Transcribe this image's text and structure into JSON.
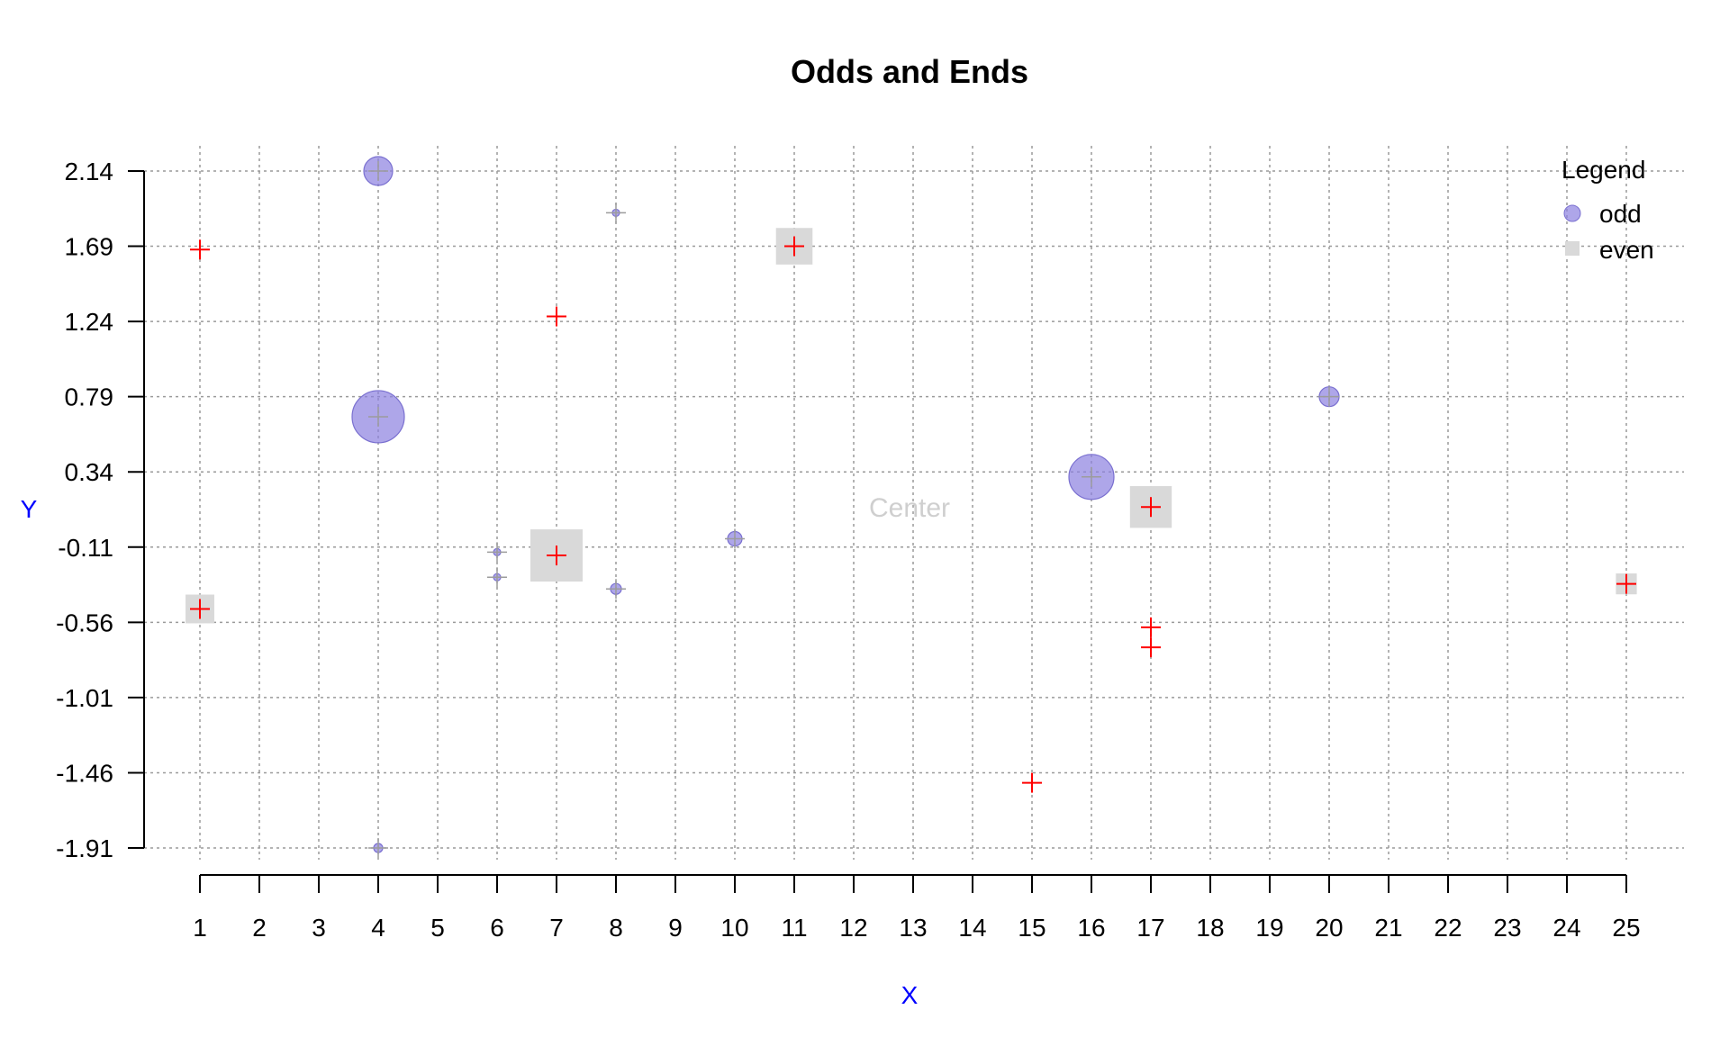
{
  "chart_data": {
    "type": "scatter",
    "title": "Odds and Ends",
    "xlabel": "X",
    "ylabel": "Y",
    "annotation": "Center",
    "xlim": [
      1,
      25
    ],
    "ylim": [
      -1.91,
      2.14
    ],
    "x_ticks": [
      "1",
      "2",
      "3",
      "4",
      "5",
      "6",
      "7",
      "8",
      "9",
      "10",
      "11",
      "12",
      "13",
      "14",
      "15",
      "16",
      "17",
      "18",
      "19",
      "20",
      "21",
      "22",
      "23",
      "24",
      "25"
    ],
    "y_ticks": [
      "2.14",
      "1.69",
      "1.24",
      "0.79",
      "0.34",
      "-0.11",
      "-0.56",
      "-1.01",
      "-1.46",
      "-1.91"
    ],
    "grid": true,
    "legend": {
      "title": "Legend",
      "position": "top-right",
      "entries": [
        "odd",
        "even"
      ]
    },
    "colors": {
      "odd": "#8c80e0",
      "even": "#d9d9d9",
      "cross": "#ff0000",
      "axis_label": "#0000ff",
      "grid": "#9a9a9a"
    },
    "series": [
      {
        "name": "odd",
        "marker": "circle",
        "points": [
          {
            "x": 4,
            "y": 2.14,
            "size": 1.6
          },
          {
            "x": 4,
            "y": 0.67,
            "size": 2.9
          },
          {
            "x": 4,
            "y": -1.91,
            "size": 0.5
          },
          {
            "x": 6,
            "y": -0.14,
            "size": 0.2
          },
          {
            "x": 6,
            "y": -0.29,
            "size": 0.3
          },
          {
            "x": 8,
            "y": 1.89,
            "size": 0.3
          },
          {
            "x": 8,
            "y": -0.36,
            "size": 0.6
          },
          {
            "x": 10,
            "y": -0.06,
            "size": 0.8
          },
          {
            "x": 16,
            "y": 0.31,
            "size": 2.5
          },
          {
            "x": 20,
            "y": 0.79,
            "size": 1.1
          }
        ]
      },
      {
        "name": "even",
        "marker": "square",
        "points": [
          {
            "x": 1,
            "y": 1.67,
            "size": 0.0
          },
          {
            "x": 1,
            "y": -0.48,
            "size": 1.1
          },
          {
            "x": 7,
            "y": 1.27,
            "size": 0.0
          },
          {
            "x": 7,
            "y": -0.16,
            "size": 2.0
          },
          {
            "x": 11,
            "y": 1.69,
            "size": 1.4
          },
          {
            "x": 15,
            "y": -1.52,
            "size": 0.0
          },
          {
            "x": 17,
            "y": 0.13,
            "size": 1.6
          },
          {
            "x": 17,
            "y": -0.59,
            "size": 0.0
          },
          {
            "x": 17,
            "y": -0.71,
            "size": 0.0
          },
          {
            "x": 25,
            "y": -0.33,
            "size": 0.8
          }
        ]
      }
    ]
  }
}
